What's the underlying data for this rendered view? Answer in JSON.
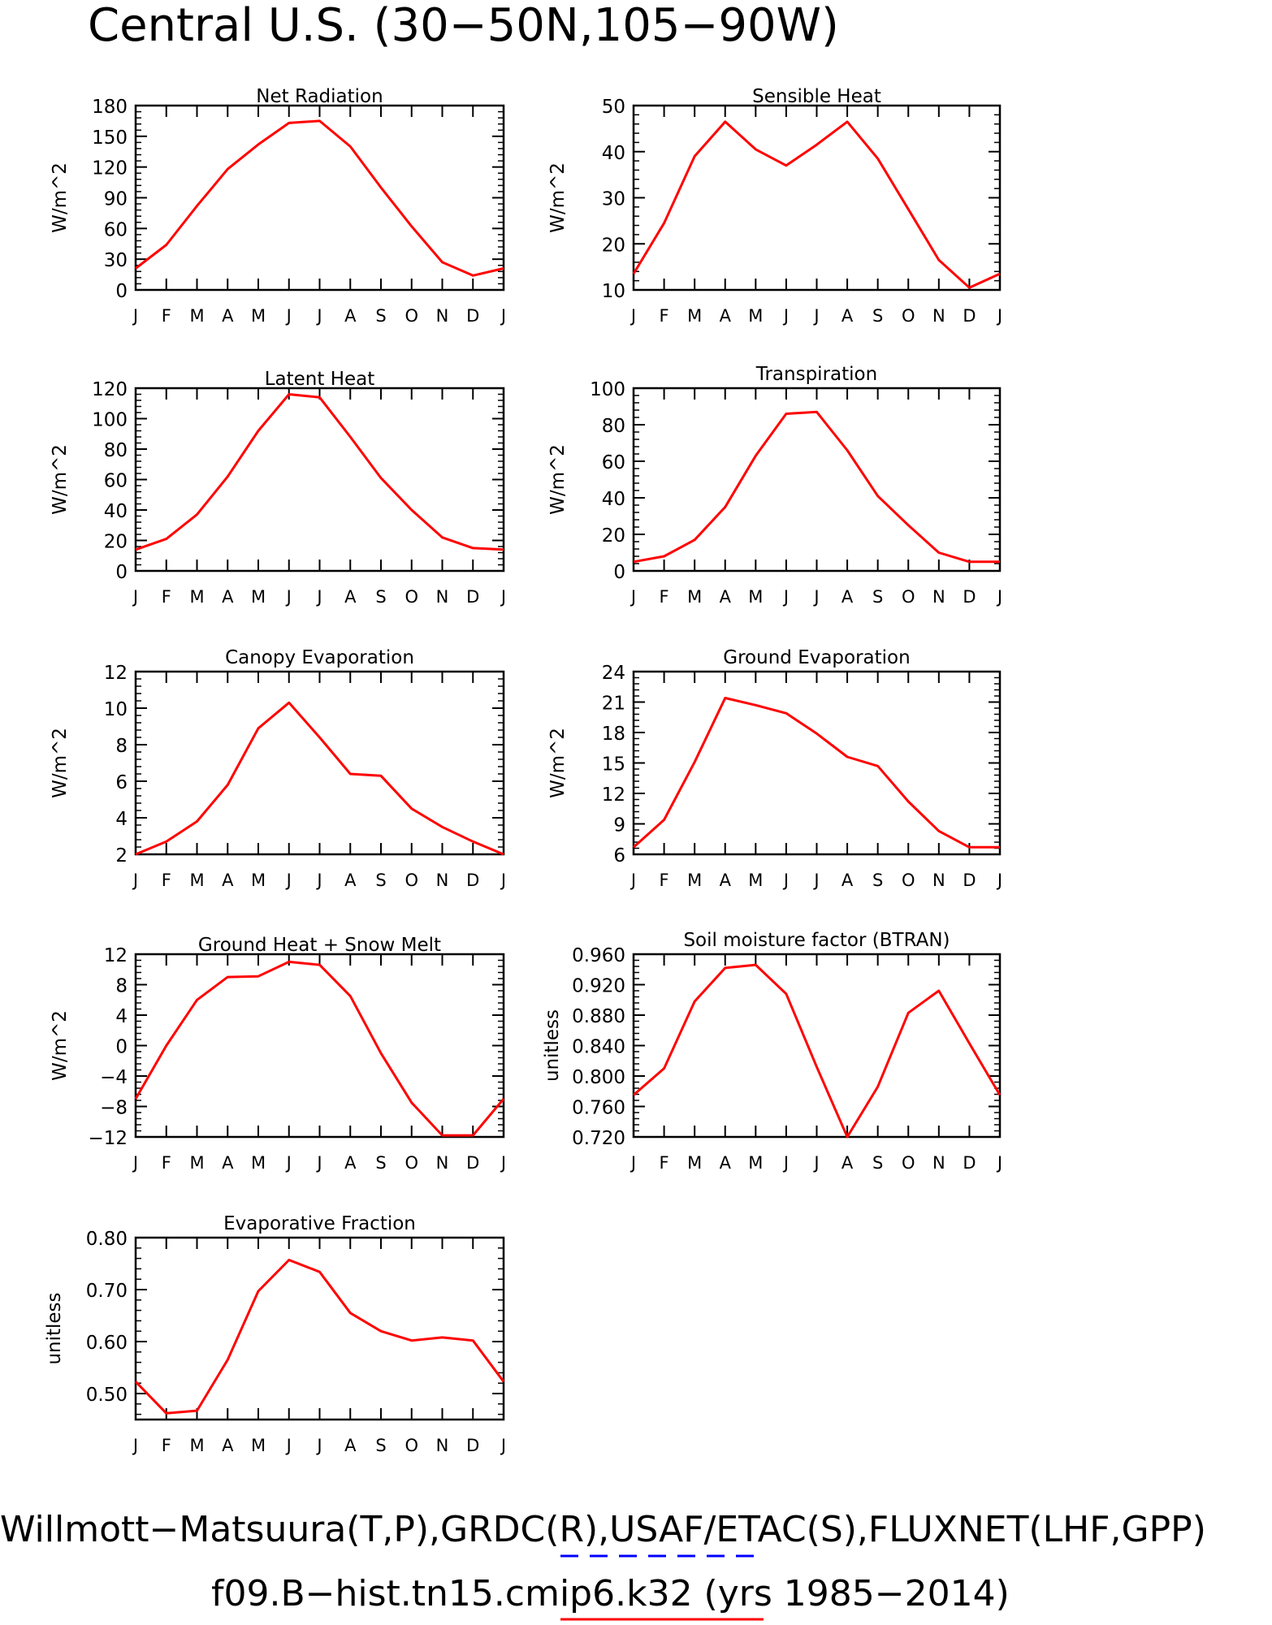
{
  "title": "Central U.S. (30−50N,105−90W)",
  "footer": {
    "line1": "Willmott−Matsuura(T,P),GRDC(R),USAF/ETAC(S),FLUXNET(LHF,GPP)",
    "line2": "f09.B−hist.tn15.cmip6.k32 (yrs 1985−2014)"
  },
  "colors": {
    "model": "#ff0000",
    "obs": "#0000ff",
    "axes": "#000000"
  },
  "months": [
    "J",
    "F",
    "M",
    "A",
    "M",
    "J",
    "J",
    "A",
    "S",
    "O",
    "N",
    "D",
    "J"
  ],
  "chart_data": [
    {
      "type": "line",
      "title": "Net Radiation",
      "ylabel": "W/m^2",
      "ylim": [
        0,
        180
      ],
      "yticks": [
        "0",
        "30",
        "60",
        "90",
        "120",
        "150",
        "180"
      ],
      "values": [
        21,
        44,
        82,
        118,
        142,
        163,
        165,
        140,
        100,
        62,
        27,
        14,
        21
      ]
    },
    {
      "type": "line",
      "title": "Sensible Heat",
      "ylabel": "W/m^2",
      "ylim": [
        10,
        50
      ],
      "yticks": [
        "10",
        "20",
        "30",
        "40",
        "50"
      ],
      "values": [
        13.5,
        24.5,
        39,
        46.5,
        40.5,
        37,
        41.5,
        46.5,
        38.5,
        27.5,
        16.5,
        10.5,
        13.5
      ]
    },
    {
      "type": "line",
      "title": "Latent Heat",
      "ylabel": "W/m^2",
      "ylim": [
        0,
        120
      ],
      "yticks": [
        "0",
        "20",
        "40",
        "60",
        "80",
        "100",
        "120"
      ],
      "values": [
        14,
        21,
        37,
        62,
        92,
        116,
        114,
        88,
        61,
        40,
        22,
        15,
        14
      ]
    },
    {
      "type": "line",
      "title": "Transpiration",
      "ylabel": "W/m^2",
      "ylim": [
        0,
        100
      ],
      "yticks": [
        "0",
        "20",
        "40",
        "60",
        "80",
        "100"
      ],
      "values": [
        5,
        8,
        17,
        35,
        63,
        86,
        87,
        66,
        41,
        25,
        10,
        5,
        5
      ]
    },
    {
      "type": "line",
      "title": "Canopy Evaporation",
      "ylabel": "W/m^2",
      "ylim": [
        2,
        12
      ],
      "yticks": [
        "2",
        "4",
        "6",
        "8",
        "10",
        "12"
      ],
      "values": [
        2.0,
        2.7,
        3.8,
        5.8,
        8.9,
        10.3,
        8.4,
        6.4,
        6.3,
        4.5,
        3.5,
        2.7,
        2.0
      ]
    },
    {
      "type": "line",
      "title": "Ground Evaporation",
      "ylabel": "W/m^2",
      "ylim": [
        6,
        24
      ],
      "yticks": [
        "6",
        "9",
        "12",
        "15",
        "18",
        "21",
        "24"
      ],
      "values": [
        6.7,
        9.4,
        15.1,
        21.4,
        20.7,
        19.9,
        17.9,
        15.6,
        14.7,
        11.2,
        8.3,
        6.7,
        6.7
      ]
    },
    {
      "type": "line",
      "title": "Ground Heat + Snow Melt",
      "ylabel": "W/m^2",
      "ylim": [
        -12,
        12
      ],
      "yticks": [
        "−12",
        "−8",
        "−4",
        "0",
        "4",
        "8",
        "12"
      ],
      "values": [
        -7,
        0,
        6,
        9,
        9.1,
        11,
        10.6,
        6.5,
        -1,
        -7.5,
        -11.8,
        -11.8,
        -7
      ]
    },
    {
      "type": "line",
      "title": "Soil moisture factor (BTRAN)",
      "ylabel": "unitless",
      "ylim": [
        0.72,
        0.96
      ],
      "yticks": [
        "0.720",
        "0.760",
        "0.800",
        "0.840",
        "0.880",
        "0.920",
        "0.960"
      ],
      "values": [
        0.775,
        0.81,
        0.898,
        0.942,
        0.946,
        0.908,
        0.812,
        0.72,
        0.786,
        0.883,
        0.912,
        0.843,
        0.775
      ]
    },
    {
      "type": "line",
      "title": "Evaporative Fraction",
      "ylabel": "unitless",
      "ylim": [
        0.45,
        0.8
      ],
      "yticks": [
        "0.50",
        "0.60",
        "0.70",
        "0.80"
      ],
      "ytick_values": [
        0.5,
        0.6,
        0.7,
        0.8
      ],
      "values": [
        0.523,
        0.462,
        0.467,
        0.565,
        0.697,
        0.757,
        0.734,
        0.655,
        0.62,
        0.602,
        0.608,
        0.602,
        0.523
      ]
    }
  ]
}
